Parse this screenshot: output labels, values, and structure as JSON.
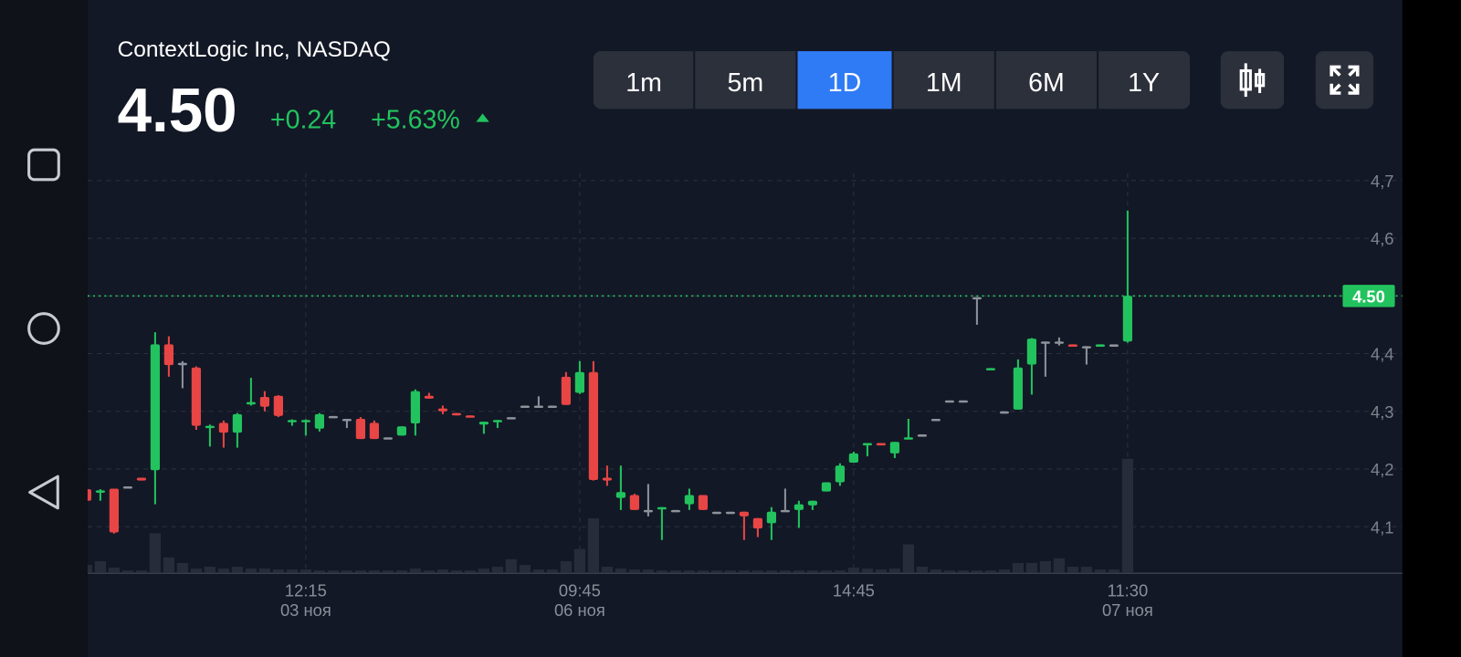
{
  "header": {
    "title": "ContextLogic Inc, NASDAQ",
    "price": "4.50",
    "change": "+0.24",
    "change_percent": "+5.63%"
  },
  "timeframes": {
    "items": [
      "1m",
      "5m",
      "1D",
      "1M",
      "6M",
      "1Y"
    ],
    "active": 2
  },
  "chart_data": {
    "type": "candlestick",
    "categories": [
      null,
      null,
      null,
      null,
      null,
      null,
      null,
      null,
      null,
      null,
      null,
      null,
      null,
      null,
      null,
      null,
      "12:15",
      null,
      null,
      null,
      null,
      null,
      null,
      null,
      null,
      null,
      null,
      null,
      null,
      null,
      null,
      null,
      null,
      null,
      null,
      null,
      "09:45",
      null,
      null,
      null,
      null,
      null,
      null,
      null,
      null,
      null,
      null,
      null,
      null,
      null,
      null,
      null,
      null,
      null,
      null,
      null,
      "14:45",
      null,
      null,
      null,
      null,
      null,
      null,
      null,
      null,
      null,
      null,
      null,
      null,
      null,
      null,
      null,
      null,
      null,
      null,
      null,
      "11:30"
    ],
    "dates": [
      null,
      null,
      null,
      null,
      null,
      null,
      null,
      null,
      null,
      null,
      null,
      null,
      null,
      null,
      null,
      null,
      "03 ноя",
      null,
      null,
      null,
      null,
      null,
      null,
      null,
      null,
      null,
      null,
      null,
      null,
      null,
      null,
      null,
      null,
      null,
      null,
      null,
      "06 ноя",
      null,
      null,
      null,
      null,
      null,
      null,
      null,
      null,
      null,
      null,
      null,
      null,
      null,
      null,
      null,
      null,
      null,
      null,
      null,
      null,
      null,
      null,
      null,
      null,
      null,
      null,
      null,
      null,
      null,
      null,
      null,
      null,
      null,
      null,
      null,
      null,
      null,
      null,
      null,
      "07 ноя"
    ],
    "open": [
      4.165,
      4.16,
      4.166,
      4.17,
      4.185,
      4.198,
      4.416,
      4.384,
      4.376,
      4.272,
      4.28,
      4.263,
      4.313,
      4.325,
      4.327,
      4.282,
      4.282,
      4.27,
      4.292,
      4.287,
      4.287,
      4.28,
      4.255,
      4.258,
      4.279,
      4.327,
      4.305,
      4.297,
      4.293,
      4.277,
      4.282,
      4.29,
      4.31,
      4.31,
      4.31,
      4.36,
      4.332,
      4.368,
      4.185,
      4.15,
      4.155,
      4.129,
      4.13,
      4.129,
      4.139,
      4.155,
      4.126,
      4.126,
      4.126,
      4.115,
      4.106,
      4.129,
      4.129,
      4.137,
      4.161,
      4.177,
      4.211,
      4.243,
      4.245,
      4.227,
      4.253,
      4.26,
      4.287,
      4.319,
      4.319,
      4.498,
      4.372,
      4.3,
      4.303,
      4.381,
      4.421,
      4.421,
      4.416,
      4.413,
      4.414,
      4.416,
      4.421
    ],
    "high": [
      4.17,
      4.165,
      4.166,
      4.17,
      4.185,
      4.437,
      4.43,
      4.387,
      4.378,
      4.277,
      4.284,
      4.297,
      4.358,
      4.335,
      4.328,
      4.286,
      4.286,
      4.297,
      4.292,
      4.287,
      4.29,
      4.284,
      4.255,
      4.274,
      4.338,
      4.332,
      4.31,
      4.297,
      4.293,
      4.282,
      4.285,
      4.29,
      4.31,
      4.326,
      4.31,
      4.368,
      4.387,
      4.387,
      4.206,
      4.206,
      4.157,
      4.174,
      4.134,
      4.129,
      4.166,
      4.155,
      4.126,
      4.126,
      4.126,
      4.115,
      4.134,
      4.166,
      4.145,
      4.145,
      4.177,
      4.21,
      4.23,
      4.245,
      4.245,
      4.247,
      4.287,
      4.26,
      4.287,
      4.319,
      4.319,
      4.498,
      4.375,
      4.3,
      4.39,
      4.427,
      4.421,
      4.428,
      4.416,
      4.413,
      4.416,
      4.416,
      4.648
    ],
    "low": [
      4.14,
      4.145,
      4.088,
      4.17,
      4.18,
      4.139,
      4.36,
      4.34,
      4.268,
      4.239,
      4.237,
      4.237,
      4.31,
      4.3,
      4.29,
      4.275,
      4.258,
      4.265,
      4.292,
      4.271,
      4.252,
      4.252,
      4.255,
      4.258,
      4.258,
      4.322,
      4.295,
      4.293,
      4.29,
      4.261,
      4.271,
      4.29,
      4.31,
      4.31,
      4.31,
      4.311,
      4.33,
      4.18,
      4.171,
      4.129,
      4.129,
      4.118,
      4.077,
      4.129,
      4.129,
      4.129,
      4.126,
      4.126,
      4.077,
      4.082,
      4.077,
      4.129,
      4.098,
      4.129,
      4.161,
      4.171,
      4.211,
      4.222,
      4.242,
      4.219,
      4.253,
      4.26,
      4.287,
      4.319,
      4.319,
      4.45,
      4.372,
      4.3,
      4.303,
      4.329,
      4.36,
      4.414,
      4.413,
      4.381,
      4.414,
      4.416,
      4.419
    ],
    "close": [
      4.145,
      4.163,
      4.09,
      4.17,
      4.18,
      4.416,
      4.38,
      4.384,
      4.275,
      4.275,
      4.263,
      4.295,
      4.316,
      4.308,
      4.292,
      4.285,
      4.285,
      4.295,
      4.292,
      4.287,
      4.252,
      4.252,
      4.255,
      4.274,
      4.335,
      4.322,
      4.3,
      4.293,
      4.29,
      4.282,
      4.285,
      4.29,
      4.31,
      4.31,
      4.31,
      4.311,
      4.368,
      4.181,
      4.18,
      4.16,
      4.129,
      4.129,
      4.134,
      4.129,
      4.155,
      4.129,
      4.126,
      4.126,
      4.118,
      4.097,
      4.126,
      4.129,
      4.139,
      4.145,
      4.177,
      4.206,
      4.227,
      4.245,
      4.242,
      4.247,
      4.255,
      4.26,
      4.287,
      4.319,
      4.319,
      4.498,
      4.375,
      4.3,
      4.376,
      4.426,
      4.421,
      4.421,
      4.413,
      4.413,
      4.416,
      4.416,
      4.5
    ],
    "volume": [
      8,
      12,
      5,
      2,
      2,
      42,
      16,
      10,
      4,
      6,
      4,
      6,
      4,
      4,
      3,
      3,
      3,
      2,
      2,
      2,
      2,
      2,
      2,
      2,
      4,
      2,
      3,
      2,
      2,
      4,
      6,
      14,
      8,
      3,
      3,
      12,
      25,
      58,
      6,
      4,
      3,
      3,
      2,
      2,
      2,
      2,
      2,
      2,
      2,
      2,
      2,
      2,
      2,
      2,
      2,
      2,
      5,
      4,
      3,
      4,
      30,
      6,
      3,
      2,
      2,
      2,
      2,
      3,
      10,
      10,
      12,
      15,
      6,
      6,
      3,
      3,
      122
    ],
    "ylim": [
      4.02,
      4.71
    ],
    "yticks": [
      {
        "value": 4.1,
        "label": "4,1"
      },
      {
        "value": 4.2,
        "label": "4,2"
      },
      {
        "value": 4.3,
        "label": "4,3"
      },
      {
        "value": 4.4,
        "label": "4,4"
      },
      {
        "value": 4.5,
        "label": "4,5"
      },
      {
        "value": 4.6,
        "label": "4,6"
      },
      {
        "value": 4.7,
        "label": "4,7"
      }
    ],
    "last_price": {
      "value": 4.5,
      "label": "4.50"
    },
    "up_color": "#22c35e",
    "down_color": "#e84545",
    "flat_color": "#8d929b",
    "grid": true
  }
}
